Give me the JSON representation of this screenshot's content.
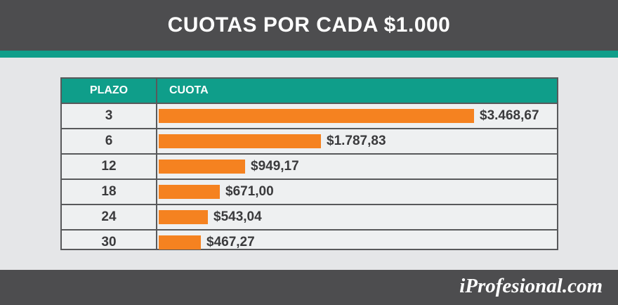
{
  "header": {
    "title": "CUOTAS POR CADA $1.000"
  },
  "table": {
    "col_plazo": "PLAZO",
    "col_cuota": "CUOTA"
  },
  "chart_data": {
    "type": "bar",
    "orientation": "horizontal",
    "title": "CUOTAS POR CADA $1.000",
    "categories": [
      "3",
      "6",
      "12",
      "18",
      "24",
      "30"
    ],
    "values": [
      3468.67,
      1787.83,
      949.17,
      671.0,
      543.04,
      467.27
    ],
    "value_labels": [
      "$3.468,67",
      "$1.787,83",
      "$949,17",
      "$671,00",
      "$543,04",
      "$467,27"
    ],
    "xlabel": "CUOTA",
    "ylabel": "PLAZO",
    "xlim": [
      0,
      3468.67
    ],
    "grid": false,
    "bar_color": "#f58220"
  },
  "footer": {
    "logo": "iProfesional.com"
  },
  "colors": {
    "header_bg": "#4d4d4f",
    "accent": "#0f9e8a",
    "bar": "#f58220",
    "background": "#e5e6e8"
  }
}
